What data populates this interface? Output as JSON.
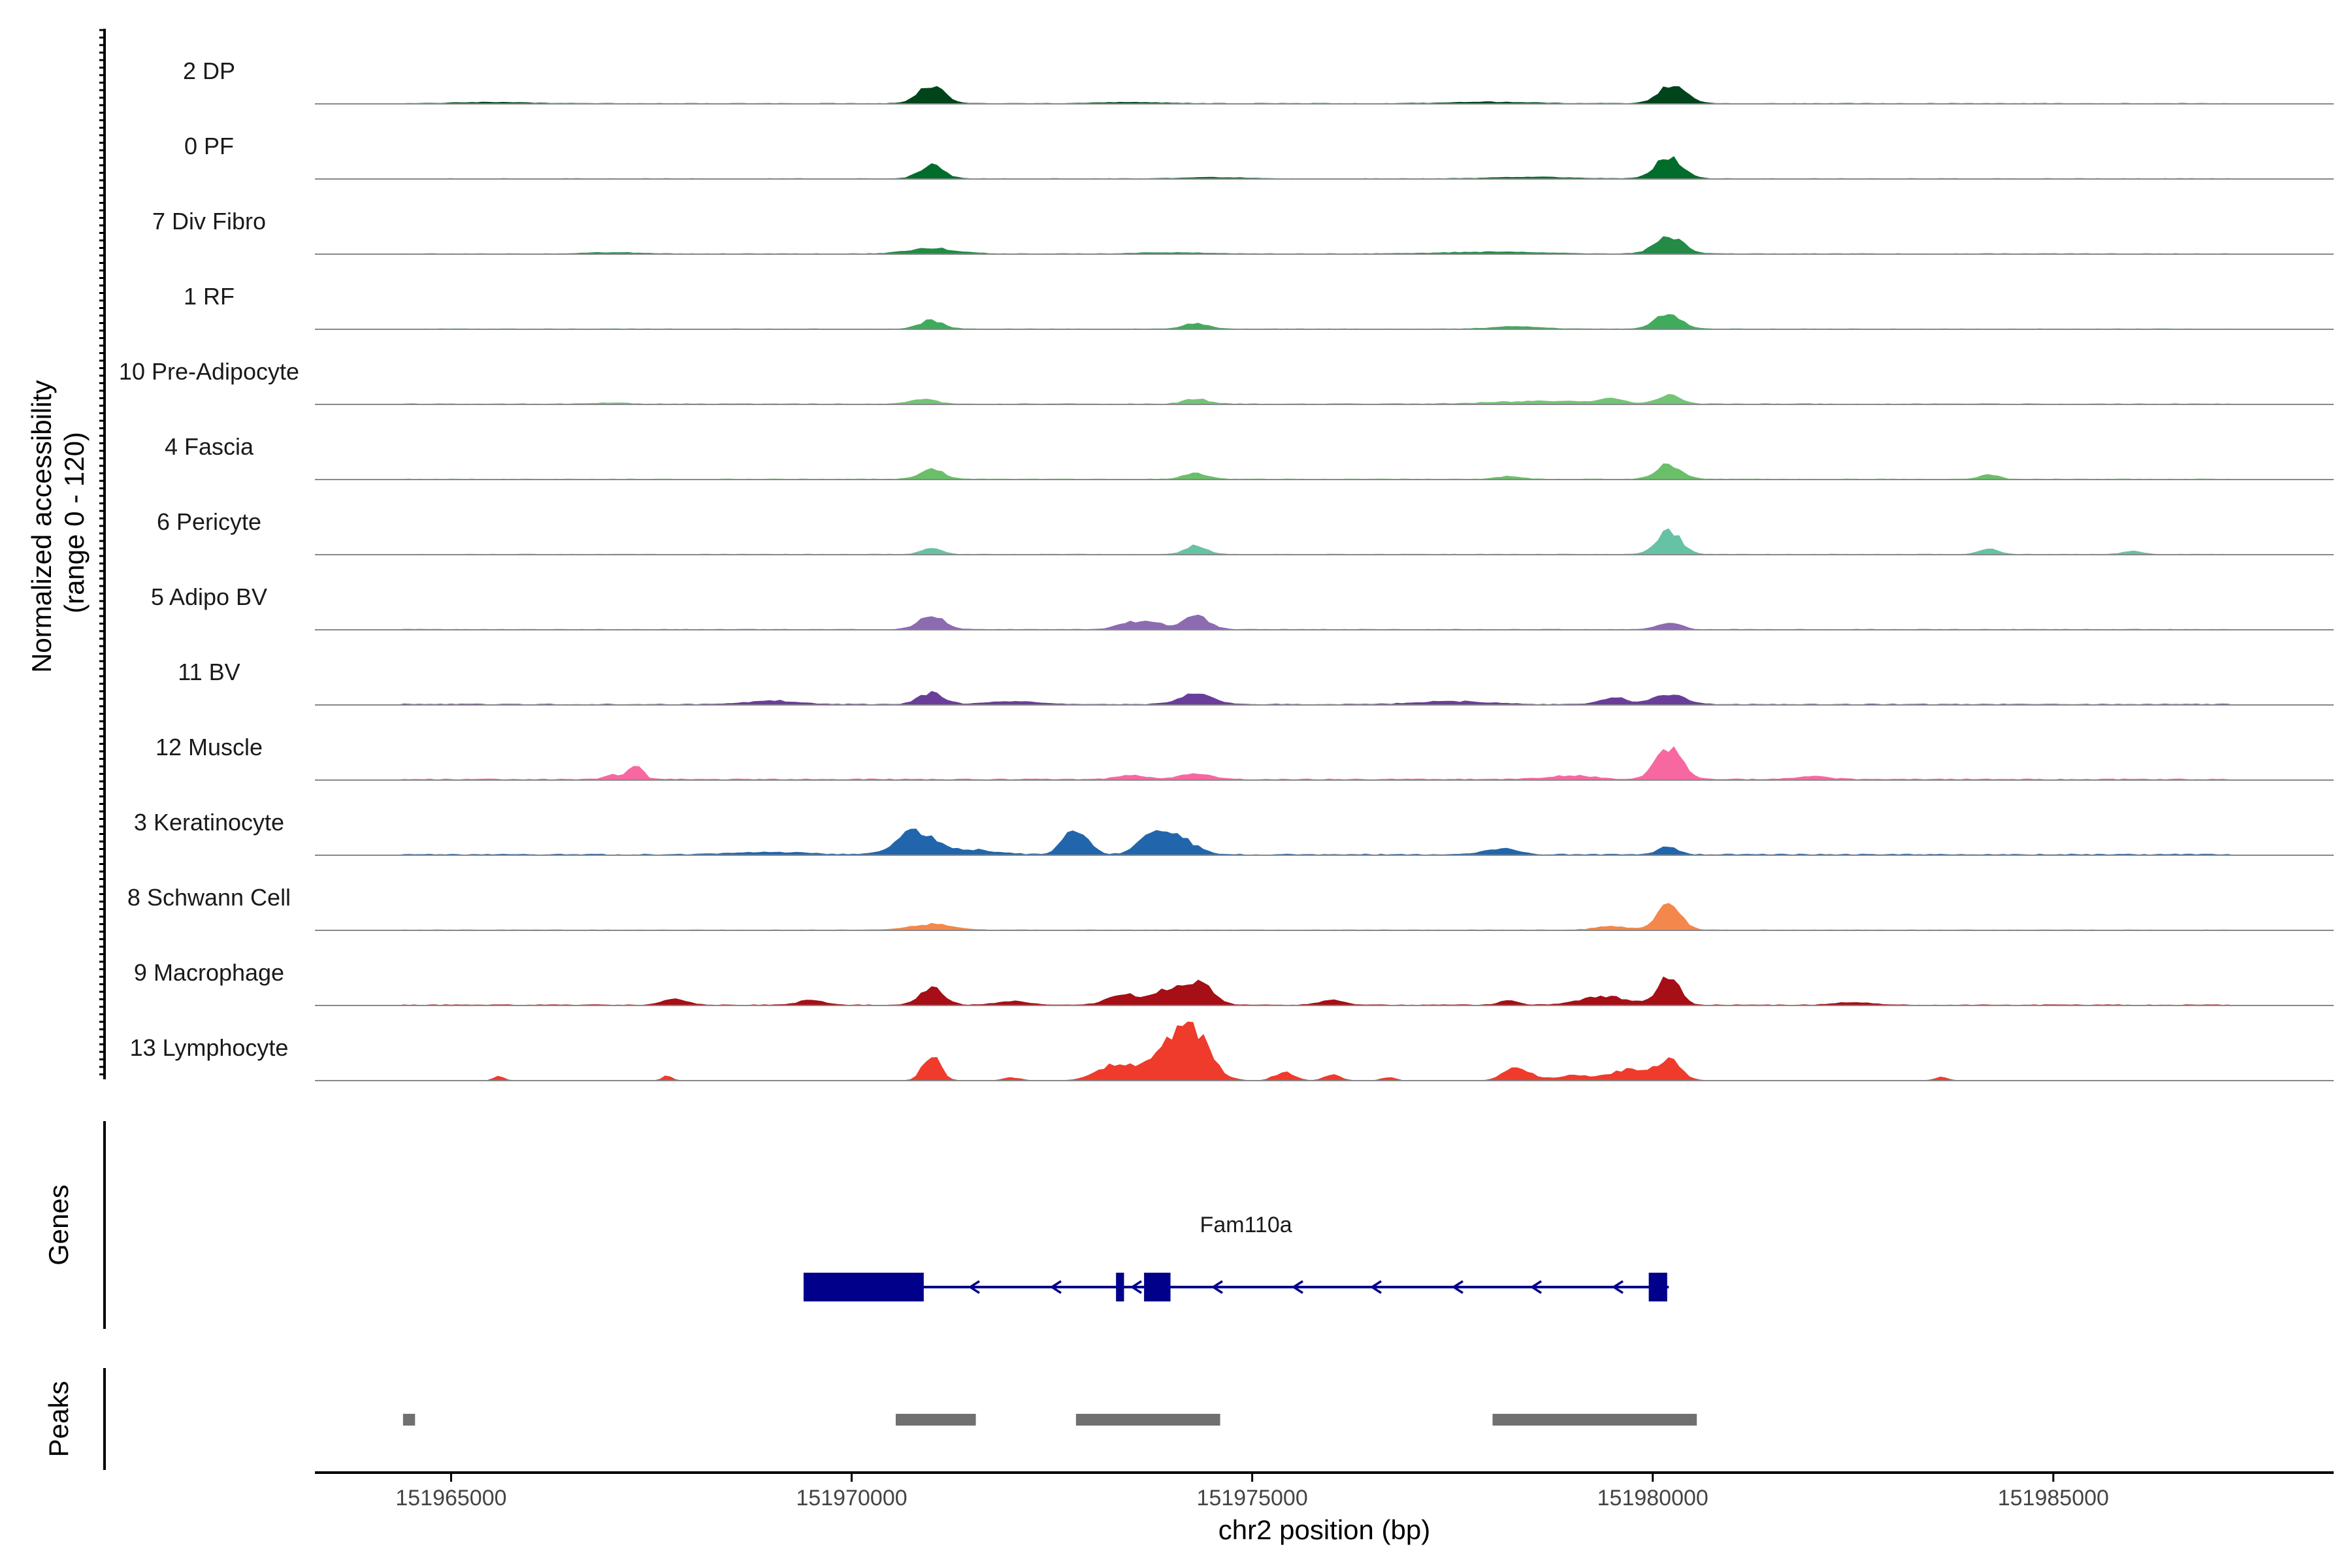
{
  "chart_data": {
    "type": "area",
    "ylabel": "Normalized accessibility\n(range 0 - 120)",
    "xlabel": "chr2 position (bp)",
    "xlim": [
      151963300,
      151988500
    ],
    "ylim": [
      0,
      120
    ],
    "x_ticks": [
      151965000,
      151970000,
      151975000,
      151980000,
      151985000
    ],
    "x_tick_labels": [
      "151965000",
      "151970000",
      "151975000",
      "151980000",
      "151985000"
    ],
    "panels": {
      "genes_label": "Genes",
      "peaks_label": "Peaks"
    },
    "tracks": [
      {
        "name": "2 DP",
        "color": "#00441b",
        "baseline": 0.6,
        "peaks": [
          [
            151971000,
            30,
            160
          ],
          [
            151980250,
            32,
            170
          ],
          [
            151965500,
            2,
            400
          ],
          [
            151973500,
            2,
            400
          ],
          [
            151978000,
            2.5,
            500
          ]
        ]
      },
      {
        "name": "0 PF",
        "color": "#006d2c",
        "baseline": 0.5,
        "peaks": [
          [
            151971000,
            22,
            150
          ],
          [
            151980200,
            36,
            170
          ],
          [
            151978500,
            2.5,
            500
          ],
          [
            151974500,
            2,
            400
          ]
        ]
      },
      {
        "name": "7 Div Fibro",
        "color": "#238b45",
        "baseline": 0.6,
        "peaks": [
          [
            151971000,
            9,
            300
          ],
          [
            151980200,
            30,
            170
          ],
          [
            151978000,
            3,
            600
          ],
          [
            151967000,
            2,
            300
          ],
          [
            151974000,
            2,
            400
          ]
        ]
      },
      {
        "name": "1 RF",
        "color": "#41ab5d",
        "baseline": 0.5,
        "peaks": [
          [
            151971000,
            14,
            150
          ],
          [
            151974300,
            9,
            150
          ],
          [
            151980200,
            26,
            160
          ],
          [
            151978300,
            4,
            300
          ]
        ]
      },
      {
        "name": "10 Pre-Adipocyte",
        "color": "#74c476",
        "baseline": 0.8,
        "peaks": [
          [
            151970900,
            8,
            150
          ],
          [
            151974300,
            8,
            150
          ],
          [
            151980200,
            14,
            150
          ],
          [
            151978700,
            5,
            600
          ],
          [
            151979500,
            9,
            120
          ],
          [
            151967000,
            2,
            200
          ]
        ]
      },
      {
        "name": "4 Fascia",
        "color": "#6abf69",
        "baseline": 0.6,
        "peaks": [
          [
            151971000,
            16,
            150
          ],
          [
            151974300,
            10,
            150
          ],
          [
            151980200,
            24,
            150
          ],
          [
            151984200,
            7,
            120
          ],
          [
            151978200,
            5,
            150
          ]
        ]
      },
      {
        "name": "6 Pericyte",
        "color": "#66c2a4",
        "baseline": 0.6,
        "peaks": [
          [
            151971000,
            10,
            120
          ],
          [
            151974300,
            14,
            130
          ],
          [
            151980200,
            40,
            150
          ],
          [
            151984200,
            9,
            120
          ],
          [
            151986000,
            5,
            120
          ]
        ]
      },
      {
        "name": "5 Adipo BV",
        "color": "#8c6bb1",
        "baseline": 0.6,
        "peaks": [
          [
            151971000,
            22,
            160
          ],
          [
            151973500,
            12,
            170
          ],
          [
            151974300,
            22,
            160
          ],
          [
            151980200,
            12,
            140
          ],
          [
            151973800,
            9,
            120
          ]
        ]
      },
      {
        "name": "11 BV",
        "color": "#6a3d9a",
        "baseline": 1.0,
        "peaks": [
          [
            151971000,
            20,
            150
          ],
          [
            151974300,
            18,
            200
          ],
          [
            151980200,
            16,
            200
          ],
          [
            151979500,
            12,
            150
          ],
          [
            151969000,
            6,
            300
          ],
          [
            151972000,
            5,
            300
          ],
          [
            151977500,
            5,
            400
          ]
        ]
      },
      {
        "name": "12 Muscle",
        "color": "#f768a1",
        "baseline": 1.2,
        "peaks": [
          [
            151967300,
            24,
            90
          ],
          [
            151980200,
            52,
            160
          ],
          [
            151974300,
            10,
            200
          ],
          [
            151973500,
            6,
            200
          ],
          [
            151979000,
            6,
            300
          ],
          [
            151982000,
            5,
            200
          ],
          [
            151967000,
            7,
            100
          ]
        ]
      },
      {
        "name": "3 Keratinocyte",
        "color": "#2166ac",
        "baseline": 1.2,
        "peaks": [
          [
            151970800,
            38,
            230
          ],
          [
            151972800,
            42,
            150
          ],
          [
            151974000,
            36,
            230
          ],
          [
            151973700,
            18,
            150
          ],
          [
            151978100,
            10,
            200
          ],
          [
            151980200,
            14,
            120
          ],
          [
            151971500,
            8,
            300
          ],
          [
            151969000,
            4,
            400
          ]
        ]
      },
      {
        "name": "8 Schwann Cell",
        "color": "#f4874b",
        "baseline": 0.6,
        "peaks": [
          [
            151971000,
            10,
            250
          ],
          [
            151980200,
            40,
            150
          ],
          [
            151979500,
            6,
            200
          ]
        ]
      },
      {
        "name": "9 Macrophage",
        "color": "#a50f15",
        "baseline": 0.8,
        "peaks": [
          [
            151971000,
            28,
            150
          ],
          [
            151974300,
            42,
            180
          ],
          [
            151973400,
            18,
            200
          ],
          [
            151973900,
            20,
            150
          ],
          [
            151980200,
            50,
            130
          ],
          [
            151979400,
            14,
            300
          ],
          [
            151967800,
            10,
            150
          ],
          [
            151969500,
            8,
            150
          ],
          [
            151976000,
            8,
            150
          ],
          [
            151972000,
            6,
            200
          ],
          [
            151982500,
            5,
            200
          ],
          [
            151978200,
            8,
            120
          ]
        ]
      },
      {
        "name": "13 Lymphocyte",
        "color": "#ef3b2c",
        "baseline": 0.0,
        "peaks": [
          [
            151974200,
            95,
            230
          ],
          [
            151971000,
            40,
            110
          ],
          [
            151973300,
            28,
            220
          ],
          [
            151973800,
            22,
            180
          ],
          [
            151980200,
            34,
            150
          ],
          [
            151978300,
            24,
            150
          ],
          [
            151979700,
            18,
            220
          ],
          [
            151975400,
            14,
            120
          ],
          [
            151976000,
            10,
            100
          ],
          [
            151965600,
            8,
            60
          ],
          [
            151967700,
            8,
            60
          ],
          [
            151983600,
            6,
            80
          ],
          [
            151979000,
            8,
            250
          ],
          [
            151976700,
            6,
            80
          ],
          [
            151972000,
            5,
            100
          ]
        ]
      }
    ],
    "genes": [
      {
        "name": "Fam110a",
        "strand": "-",
        "start": 151969400,
        "end": 151980200,
        "exons": [
          [
            151969400,
            151970900
          ],
          [
            151973300,
            151973400
          ],
          [
            151973650,
            151973980
          ],
          [
            151979950,
            151980180
          ]
        ],
        "color": "#00008b"
      }
    ],
    "peaks": [
      [
        151964400,
        151964550
      ],
      [
        151970550,
        151971550
      ],
      [
        151972800,
        151974600
      ],
      [
        151978000,
        151980550
      ]
    ]
  }
}
